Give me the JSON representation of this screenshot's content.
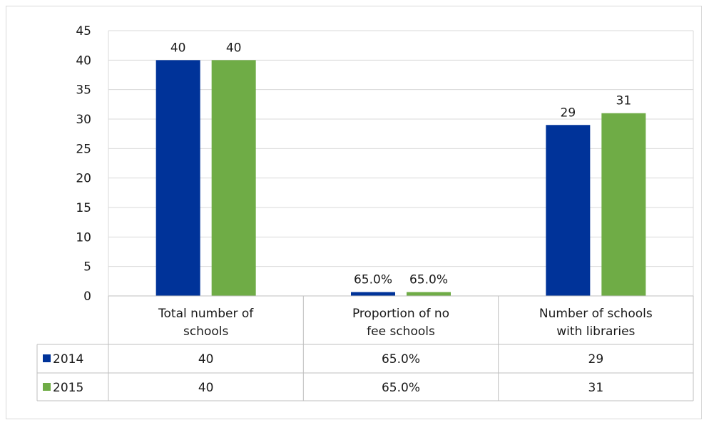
{
  "chart_data": {
    "type": "bar",
    "categories": [
      [
        "Total number of",
        "schools"
      ],
      [
        "Proportion of no",
        "fee schools"
      ],
      [
        "Number of schools",
        "with libraries"
      ]
    ],
    "series": [
      {
        "name": "2014",
        "color": "#003399",
        "values": [
          40,
          0.65,
          29
        ],
        "labels": [
          "40",
          "65.0%",
          "29"
        ]
      },
      {
        "name": "2015",
        "color": "#6fac46",
        "values": [
          40,
          0.65,
          31
        ],
        "labels": [
          "40",
          "65.0%",
          "31"
        ]
      }
    ],
    "ylim": [
      0,
      45
    ],
    "yticks": [
      0,
      5,
      10,
      15,
      20,
      25,
      30,
      35,
      40,
      45
    ],
    "grid": true,
    "legend": "data-table",
    "title": "",
    "xlabel": "",
    "ylabel": ""
  }
}
